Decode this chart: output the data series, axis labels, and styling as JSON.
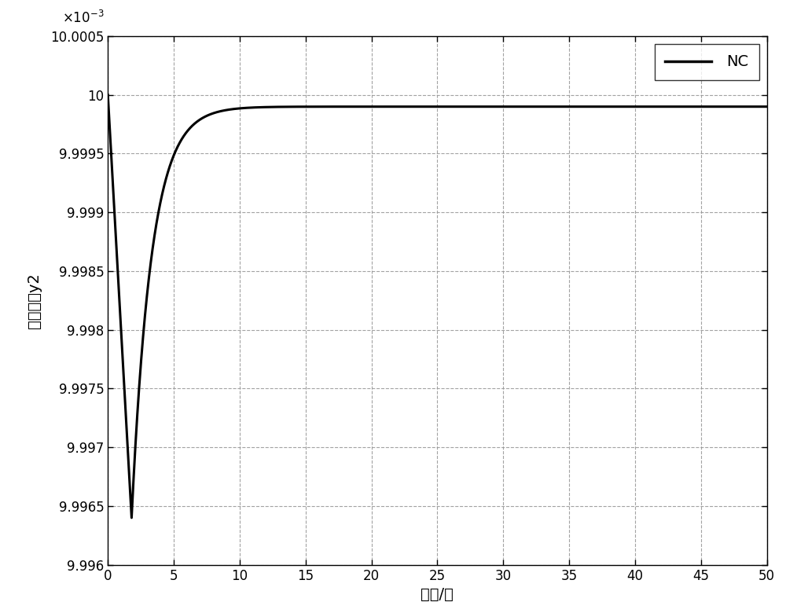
{
  "xlabel": "时间/秒",
  "ylabel": "状态轨迹y2",
  "xlim": [
    0,
    50
  ],
  "ylim_low": 0.009996,
  "ylim_high": 0.0100005,
  "xticks": [
    0,
    5,
    10,
    15,
    20,
    25,
    30,
    35,
    40,
    45,
    50
  ],
  "ytick_values_scaled": [
    9.996,
    9.9965,
    9.997,
    9.9975,
    9.998,
    9.9985,
    9.999,
    9.9995,
    10.0,
    10.0005
  ],
  "ytick_labels": [
    "9.996",
    "9.9965",
    "9.997",
    "9.9975",
    "9.998",
    "9.9985",
    "9.999",
    "9.9995",
    "10",
    "10.0005"
  ],
  "legend_label": "NC",
  "line_color": "#000000",
  "line_width": 2.2,
  "initial_value_scaled": 10.0,
  "min_value_scaled": 9.9964,
  "t_min": 1.8,
  "steady_value_scaled": 9.9999,
  "recovery_tau": 1.5,
  "bg_color": "#ffffff",
  "grid_color": "#999999",
  "grid_style": "--",
  "grid_lw": 0.8,
  "tick_labelsize": 12,
  "label_fontsize": 14,
  "legend_fontsize": 14
}
